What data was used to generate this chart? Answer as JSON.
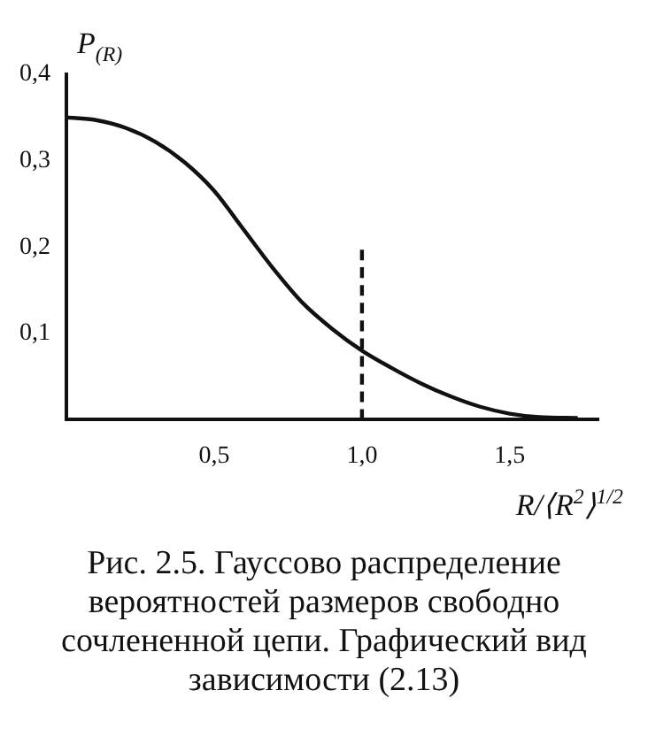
{
  "chart_data": {
    "type": "line",
    "ylabel": "P$_{(R)}$",
    "xlabel": "R/⟨R$^{2}$⟩$^{1/2}$",
    "xlim": [
      0,
      1.8
    ],
    "xticks": [
      {
        "value": 0.5,
        "label": "0,5"
      },
      {
        "value": 1.0,
        "label": "1,0"
      },
      {
        "value": 1.5,
        "label": "1,5"
      }
    ],
    "ylim": [
      0,
      0.4
    ],
    "yticks": [
      {
        "value": 0.1,
        "label": "0,1"
      },
      {
        "value": 0.2,
        "label": "0,2"
      },
      {
        "value": 0.3,
        "label": "0,3"
      },
      {
        "value": 0.4,
        "label": "0,4"
      }
    ],
    "x": [
      0,
      0.1,
      0.2,
      0.3,
      0.4,
      0.5,
      0.6,
      0.7,
      0.8,
      0.9,
      1.0,
      1.1,
      1.2,
      1.3,
      1.4,
      1.5,
      1.6,
      1.73
    ],
    "series": [
      {
        "color": "#111111",
        "line_style": "solid",
        "values": [
          0.35,
          0.347,
          0.338,
          0.322,
          0.298,
          0.265,
          0.22,
          0.175,
          0.135,
          0.105,
          0.08,
          0.06,
          0.042,
          0.027,
          0.015,
          0.007,
          0.003,
          0.002
        ]
      },
      {
        "color": "#111111",
        "line_style": "dashed",
        "x": [
          1.0,
          1.0
        ],
        "values": [
          0,
          0.2
        ]
      }
    ],
    "grid": false,
    "legend": false,
    "marker": "none",
    "annotations": [
      "Рис. 2.5. Гауссово распределение вероятностей размеров свободно сочлененной цепи. Графический вид зависимости (2.13)"
    ]
  }
}
